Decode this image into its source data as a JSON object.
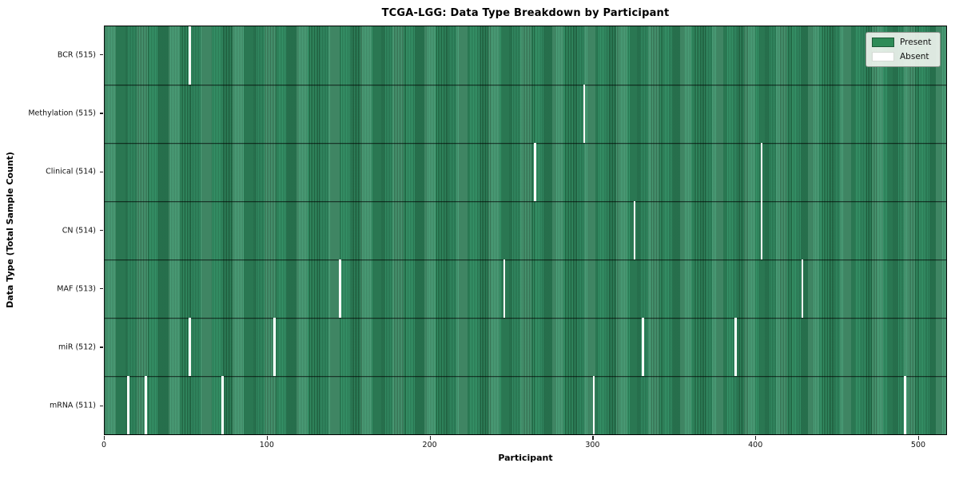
{
  "title": "TCGA-LGG: Data Type Breakdown by Participant",
  "axes": {
    "xlabel": "Participant",
    "ylabel": "Data Type (Total Sample Count)",
    "x_ticks": [
      0,
      100,
      200,
      300,
      400,
      500
    ]
  },
  "legend": {
    "present_label": "Present",
    "absent_label": "Absent",
    "present_color": "#2e8b57",
    "absent_color": "#ffffff"
  },
  "colors": {
    "bar_green": "#2e8b57",
    "bar_green_light": "#37966b",
    "bar_green_dark": "#1c5838",
    "absent_white": "#fbfbf9",
    "axis_black": "#000000",
    "legend_bg": "#edf3ed"
  },
  "chart_data": {
    "type": "heatmap",
    "title": "TCGA-LGG: Data Type Breakdown by Participant",
    "xlabel": "Participant",
    "ylabel": "Data Type (Total Sample Count)",
    "x_range": [
      0,
      516
    ],
    "x_ticks": [
      0,
      100,
      200,
      300,
      400,
      500
    ],
    "total_participants": 516,
    "legend_entries": [
      "Present",
      "Absent"
    ],
    "legend_position": "upper right",
    "grid": false,
    "rows": [
      {
        "label": "BCR (515)",
        "data_type": "BCR",
        "sample_count": 515,
        "absent_participants": [
          52
        ]
      },
      {
        "label": "Methylation (515)",
        "data_type": "Methylation",
        "sample_count": 515,
        "absent_participants": [
          294
        ]
      },
      {
        "label": "Clinical (514)",
        "data_type": "Clinical",
        "sample_count": 514,
        "absent_participants": [
          264,
          403
        ]
      },
      {
        "label": "CN (514)",
        "data_type": "CN",
        "sample_count": 514,
        "absent_participants": [
          325,
          403
        ]
      },
      {
        "label": "MAF (513)",
        "data_type": "MAF",
        "sample_count": 513,
        "absent_participants": [
          144,
          245,
          428
        ]
      },
      {
        "label": "miR (512)",
        "data_type": "miR",
        "sample_count": 512,
        "absent_participants": [
          52,
          104,
          330,
          387
        ]
      },
      {
        "label": "mRNA (511)",
        "data_type": "mRNA",
        "sample_count": 511,
        "absent_participants": [
          14,
          25,
          72,
          300,
          491
        ]
      }
    ]
  }
}
